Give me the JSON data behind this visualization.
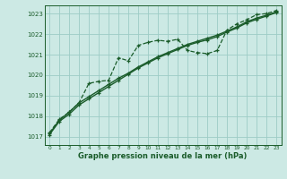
{
  "background_color": "#cce9e4",
  "grid_color": "#9dccc5",
  "line_color": "#1a5c2a",
  "xlabel": "Graphe pression niveau de la mer (hPa)",
  "ylim": [
    1016.6,
    1023.4
  ],
  "xlim": [
    -0.5,
    23.5
  ],
  "yticks": [
    1017,
    1018,
    1019,
    1020,
    1021,
    1022,
    1023
  ],
  "xticks": [
    0,
    1,
    2,
    3,
    4,
    5,
    6,
    7,
    8,
    9,
    10,
    11,
    12,
    13,
    14,
    15,
    16,
    17,
    18,
    19,
    20,
    21,
    22,
    23
  ],
  "series": [
    {
      "x": [
        0,
        1,
        2,
        3,
        4,
        5,
        6,
        7,
        8,
        9,
        10,
        11,
        12,
        13,
        14,
        15,
        16,
        17,
        18,
        19,
        20,
        21,
        22,
        23
      ],
      "y": [
        1017.15,
        1017.8,
        1018.2,
        1018.65,
        1018.95,
        1019.25,
        1019.55,
        1019.85,
        1020.1,
        1020.4,
        1020.65,
        1020.9,
        1021.1,
        1021.3,
        1021.5,
        1021.65,
        1021.8,
        1021.95,
        1022.15,
        1022.35,
        1022.6,
        1022.78,
        1022.92,
        1023.08
      ],
      "style": "solid",
      "lw": 1.0
    },
    {
      "x": [
        0,
        1,
        2,
        3,
        4,
        5,
        6,
        7,
        8,
        9,
        10,
        11,
        12,
        13,
        14,
        15,
        16,
        17,
        18,
        19,
        20,
        21,
        22,
        23
      ],
      "y": [
        1017.1,
        1017.75,
        1018.1,
        1018.55,
        1018.85,
        1019.15,
        1019.45,
        1019.75,
        1020.05,
        1020.35,
        1020.6,
        1020.85,
        1021.05,
        1021.25,
        1021.45,
        1021.6,
        1021.72,
        1021.88,
        1022.1,
        1022.3,
        1022.55,
        1022.72,
        1022.88,
        1023.05
      ],
      "style": "solid",
      "lw": 1.0
    },
    {
      "x": [
        0,
        1,
        2,
        3,
        4,
        5,
        6,
        7,
        8,
        9,
        10,
        11,
        12,
        13,
        14,
        15,
        16,
        17,
        18,
        19,
        20,
        21,
        22,
        23
      ],
      "y": [
        1017.2,
        1017.85,
        1018.2,
        1018.65,
        1019.6,
        1019.7,
        1019.75,
        1020.85,
        1020.7,
        1021.45,
        1021.6,
        1021.7,
        1021.65,
        1021.75,
        1021.2,
        1021.1,
        1021.05,
        1021.2,
        1022.2,
        1022.5,
        1022.7,
        1022.95,
        1023.0,
        1023.15
      ],
      "style": "dashed",
      "lw": 0.9
    }
  ]
}
